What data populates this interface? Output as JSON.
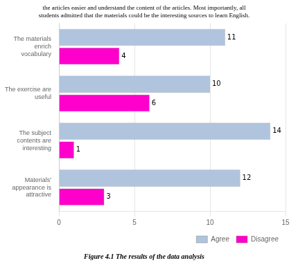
{
  "chart_data": {
    "type": "bar",
    "orientation": "horizontal",
    "subtitle": [
      "the articles easier and understand the content of the articles. Most importantly, all",
      "students admitted that the materials could be the interesting sources to learn English."
    ],
    "title": "Figure 4.1 The results of the data analysis",
    "categories": [
      "The materials\nenrich\nvocabulary",
      "The exercise are\nuseful",
      "The subject\ncontents are\ninteresting",
      "Materials'\nappearance is\nattractive"
    ],
    "series": [
      {
        "name": "Agree",
        "color": "#b0c4de",
        "values": [
          11,
          10,
          14,
          12
        ]
      },
      {
        "name": "Disagree",
        "color": "#ff00cc",
        "values": [
          4,
          6,
          1,
          3
        ]
      }
    ],
    "xlim": [
      0,
      15
    ],
    "xticks": [
      0,
      5,
      10,
      15
    ],
    "grid": true,
    "legend": "lower right",
    "data_labels": true
  }
}
